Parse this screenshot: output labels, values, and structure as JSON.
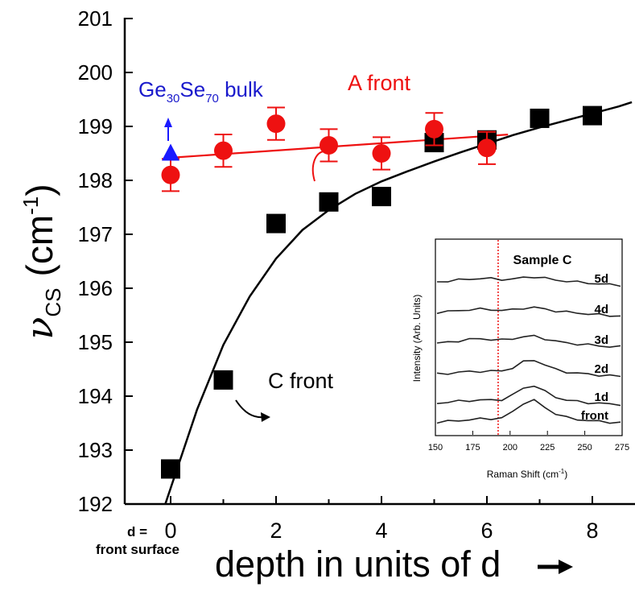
{
  "chart_data": {
    "type": "scatter",
    "xlabel": "depth in units of d",
    "xlim": [
      -0.8,
      8.8
    ],
    "ylim": [
      192,
      201
    ],
    "yticks": [
      192,
      193,
      194,
      195,
      196,
      197,
      198,
      199,
      200,
      201
    ],
    "xticks": [
      0,
      2,
      4,
      6,
      8
    ],
    "grid": false,
    "ylabel": {
      "main": "ν",
      "sub": "CS",
      "unit": "(cm",
      "unit_sup": "-1",
      "unit_close": ")"
    },
    "x_zero_note": {
      "line1": "d =",
      "line2": "front surface"
    },
    "series": [
      {
        "name": "C front",
        "marker": "square",
        "color": "#000000",
        "x": [
          0,
          1,
          2,
          3,
          4,
          5,
          6,
          7,
          8
        ],
        "y": [
          192.65,
          194.3,
          197.2,
          197.6,
          197.7,
          198.7,
          198.75,
          199.15,
          199.2
        ],
        "fit": [
          [
            -0.1,
            192.0
          ],
          [
            0.5,
            193.75
          ],
          [
            1,
            194.95
          ],
          [
            1.5,
            195.85
          ],
          [
            2,
            196.55
          ],
          [
            2.5,
            197.08
          ],
          [
            3,
            197.45
          ],
          [
            3.5,
            197.75
          ],
          [
            4,
            197.98
          ],
          [
            4.5,
            198.17
          ],
          [
            5,
            198.35
          ],
          [
            5.5,
            198.52
          ],
          [
            6,
            198.68
          ],
          [
            6.5,
            198.84
          ],
          [
            7,
            198.98
          ],
          [
            7.5,
            199.11
          ],
          [
            8,
            199.24
          ],
          [
            8.5,
            199.37
          ],
          [
            8.75,
            199.45
          ]
        ]
      },
      {
        "name": "A front",
        "marker": "circle",
        "color": "#ee1111",
        "x": [
          0,
          1,
          2,
          3,
          4,
          5,
          6
        ],
        "y": [
          198.1,
          198.55,
          199.05,
          198.65,
          198.5,
          198.95,
          198.6
        ],
        "err": [
          0.3,
          0.3,
          0.3,
          0.3,
          0.3,
          0.3,
          0.3
        ],
        "fit": [
          [
            0,
            198.42
          ],
          [
            6.4,
            198.85
          ]
        ]
      },
      {
        "name": "Ge30Se70 bulk",
        "marker": "triangle",
        "color": "#1a1aff",
        "x": [
          0
        ],
        "y": [
          198.5
        ]
      }
    ],
    "annotations": {
      "bulk_label": {
        "base1": "Ge",
        "sub1": "30",
        "base2": "Se",
        "sub2": "70",
        "tail": " bulk"
      },
      "a_front": "A front",
      "c_front": "C front"
    },
    "inset": {
      "type": "line",
      "title": "Sample C",
      "xlabel": "Raman Shift (cm",
      "xlabel_sup": "-1",
      "xlabel_close": ")",
      "ylabel": "Intensity (Arb. Units)",
      "xlim": [
        150,
        275
      ],
      "xticks": [
        150,
        175,
        200,
        225,
        250,
        275
      ],
      "marker_line_x": 192,
      "series": [
        {
          "name": "5d",
          "values": [
            0.32,
            0.36,
            0.42,
            0.48,
            0.5,
            0.5,
            0.46,
            0.46,
            0.56,
            0.6,
            0.52,
            0.42,
            0.36,
            0.3,
            0.26,
            0.2,
            0.16,
            0.13
          ]
        },
        {
          "name": "4d",
          "values": [
            0.32,
            0.36,
            0.42,
            0.48,
            0.5,
            0.48,
            0.44,
            0.46,
            0.56,
            0.6,
            0.5,
            0.4,
            0.34,
            0.28,
            0.24,
            0.18,
            0.14,
            0.12
          ]
        },
        {
          "name": "3d",
          "values": [
            0.3,
            0.36,
            0.44,
            0.52,
            0.56,
            0.52,
            0.48,
            0.56,
            0.68,
            0.7,
            0.56,
            0.42,
            0.32,
            0.26,
            0.22,
            0.16,
            0.12,
            0.1
          ]
        },
        {
          "name": "2d",
          "values": [
            0.2,
            0.24,
            0.3,
            0.34,
            0.36,
            0.36,
            0.38,
            0.56,
            0.88,
            1.0,
            0.72,
            0.46,
            0.32,
            0.24,
            0.2,
            0.14,
            0.1,
            0.08
          ]
        },
        {
          "name": "1d",
          "values": [
            0.16,
            0.2,
            0.26,
            0.3,
            0.32,
            0.32,
            0.36,
            0.6,
            1.0,
            1.15,
            0.8,
            0.5,
            0.32,
            0.24,
            0.18,
            0.14,
            0.1,
            0.08
          ]
        },
        {
          "name": "front",
          "values": [
            0.12,
            0.16,
            0.22,
            0.26,
            0.3,
            0.32,
            0.36,
            0.7,
            1.2,
            1.35,
            0.95,
            0.6,
            0.38,
            0.28,
            0.22,
            0.16,
            0.12,
            0.1
          ]
        }
      ]
    }
  }
}
